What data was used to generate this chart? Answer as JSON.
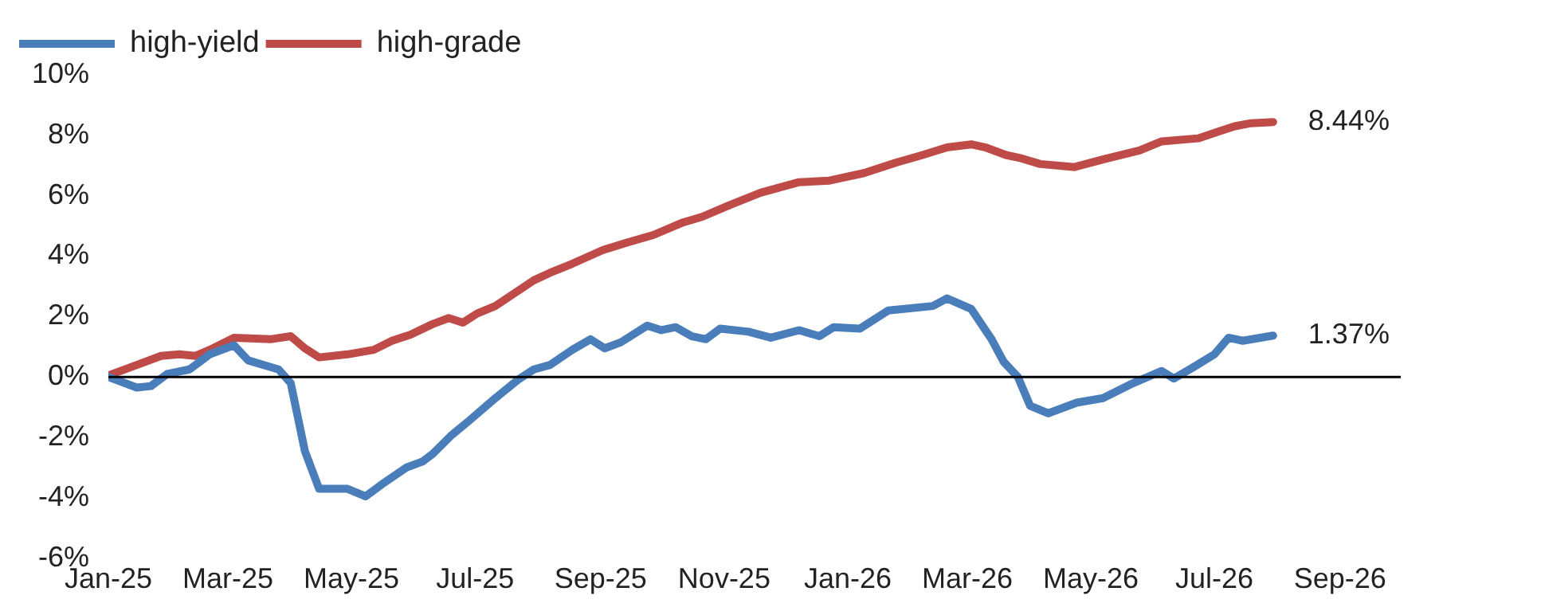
{
  "chart_data": {
    "type": "line",
    "legend": "top left",
    "marker": "none",
    "line_style": "solid",
    "grid": false,
    "xlim": [
      "2025-01-01",
      "2026-10-01"
    ],
    "xticks": [
      {
        "value": "2025-01-01",
        "label": "Jan-25"
      },
      {
        "value": "2025-03-01",
        "label": "Mar-25"
      },
      {
        "value": "2025-05-01",
        "label": "May-25"
      },
      {
        "value": "2025-07-01",
        "label": "Jul-25"
      },
      {
        "value": "2025-09-01",
        "label": "Sep-25"
      },
      {
        "value": "2025-11-01",
        "label": "Nov-25"
      },
      {
        "value": "2026-01-01",
        "label": "Jan-26"
      },
      {
        "value": "2026-03-01",
        "label": "Mar-26"
      },
      {
        "value": "2026-05-01",
        "label": "May-26"
      },
      {
        "value": "2026-07-01",
        "label": "Jul-26"
      },
      {
        "value": "2026-09-01",
        "label": "Sep-26"
      }
    ],
    "ylim": [
      -6,
      10
    ],
    "yticks": [
      {
        "value": -6,
        "label": "-6%"
      },
      {
        "value": -4,
        "label": "-4%"
      },
      {
        "value": -2,
        "label": "-2%"
      },
      {
        "value": 0,
        "label": "0%"
      },
      {
        "value": 2,
        "label": "2%"
      },
      {
        "value": 4,
        "label": "4%"
      },
      {
        "value": 6,
        "label": "6%"
      },
      {
        "value": 8,
        "label": "8%"
      },
      {
        "value": 10,
        "label": "10%"
      }
    ],
    "ref_lines": [
      {
        "axis": "y",
        "value": 0,
        "color": "#000000"
      }
    ],
    "annotations": [
      {
        "text": "8.44%",
        "x": "2026-07-30",
        "y": 8.44
      },
      {
        "text": "1.37%",
        "x": "2026-07-30",
        "y": 1.37
      }
    ],
    "series": [
      {
        "name": "high-yield",
        "color": "#4a7ebb",
        "x": [
          "2025-01-01",
          "2025-01-15",
          "2025-01-22",
          "2025-01-30",
          "2025-02-10",
          "2025-02-20",
          "2025-03-04",
          "2025-03-11",
          "2025-03-26",
          "2025-04-01",
          "2025-04-08",
          "2025-04-15",
          "2025-04-29",
          "2025-05-08",
          "2025-05-16",
          "2025-05-28",
          "2025-06-05",
          "2025-06-10",
          "2025-06-19",
          "2025-06-28",
          "2025-07-11",
          "2025-07-22",
          "2025-07-30",
          "2025-08-07",
          "2025-08-18",
          "2025-08-27",
          "2025-09-03",
          "2025-09-11",
          "2025-09-24",
          "2025-10-01",
          "2025-10-08",
          "2025-10-16",
          "2025-10-23",
          "2025-10-30",
          "2025-11-13",
          "2025-11-24",
          "2025-12-08",
          "2025-12-18",
          "2025-12-25",
          "2026-01-07",
          "2026-01-21",
          "2026-02-12",
          "2026-02-19",
          "2026-03-03",
          "2026-03-13",
          "2026-03-19",
          "2026-03-26",
          "2026-04-01",
          "2026-04-10",
          "2026-04-24",
          "2026-05-07",
          "2026-05-22",
          "2026-06-05",
          "2026-06-11",
          "2026-06-20",
          "2026-07-01",
          "2026-07-08",
          "2026-07-15",
          "2026-07-30"
        ],
        "values": [
          0,
          -0.35,
          -0.3,
          0.1,
          0.25,
          0.75,
          1.05,
          0.55,
          0.25,
          -0.2,
          -2.45,
          -3.7,
          -3.7,
          -3.95,
          -3.55,
          -3.0,
          -2.8,
          -2.55,
          -1.95,
          -1.45,
          -0.7,
          -0.1,
          0.25,
          0.4,
          0.9,
          1.25,
          0.95,
          1.15,
          1.7,
          1.55,
          1.65,
          1.35,
          1.25,
          1.6,
          1.5,
          1.3,
          1.55,
          1.35,
          1.65,
          1.6,
          2.2,
          2.35,
          2.6,
          2.25,
          1.25,
          0.5,
          0.0,
          -0.95,
          -1.2,
          -0.85,
          -0.7,
          -0.2,
          0.2,
          -0.05,
          0.3,
          0.75,
          1.3,
          1.2,
          1.37
        ]
      },
      {
        "name": "high-grade",
        "color": "#be4b48",
        "x": [
          "2025-01-01",
          "2025-01-15",
          "2025-01-27",
          "2025-02-05",
          "2025-02-13",
          "2025-02-20",
          "2025-03-04",
          "2025-03-22",
          "2025-04-01",
          "2025-04-08",
          "2025-04-15",
          "2025-04-29",
          "2025-05-12",
          "2025-05-21",
          "2025-05-30",
          "2025-06-10",
          "2025-06-18",
          "2025-06-25",
          "2025-07-02",
          "2025-07-11",
          "2025-07-20",
          "2025-07-30",
          "2025-08-07",
          "2025-08-18",
          "2025-09-02",
          "2025-09-14",
          "2025-09-27",
          "2025-10-11",
          "2025-10-21",
          "2025-11-04",
          "2025-11-19",
          "2025-12-08",
          "2025-12-23",
          "2026-01-09",
          "2026-01-25",
          "2026-02-07",
          "2026-02-19",
          "2026-03-03",
          "2026-03-10",
          "2026-03-20",
          "2026-03-27",
          "2026-04-06",
          "2026-04-23",
          "2026-05-07",
          "2026-05-25",
          "2026-06-05",
          "2026-06-23",
          "2026-07-02",
          "2026-07-11",
          "2026-07-19",
          "2026-07-30"
        ],
        "values": [
          0.05,
          0.4,
          0.7,
          0.75,
          0.7,
          0.9,
          1.3,
          1.25,
          1.35,
          0.95,
          0.65,
          0.75,
          0.9,
          1.2,
          1.4,
          1.75,
          1.95,
          1.8,
          2.1,
          2.35,
          2.75,
          3.2,
          3.45,
          3.75,
          4.2,
          4.45,
          4.7,
          5.1,
          5.3,
          5.7,
          6.1,
          6.45,
          6.5,
          6.75,
          7.1,
          7.35,
          7.6,
          7.7,
          7.6,
          7.35,
          7.25,
          7.05,
          6.95,
          7.2,
          7.5,
          7.8,
          7.9,
          8.1,
          8.3,
          8.4,
          8.44
        ]
      }
    ]
  }
}
